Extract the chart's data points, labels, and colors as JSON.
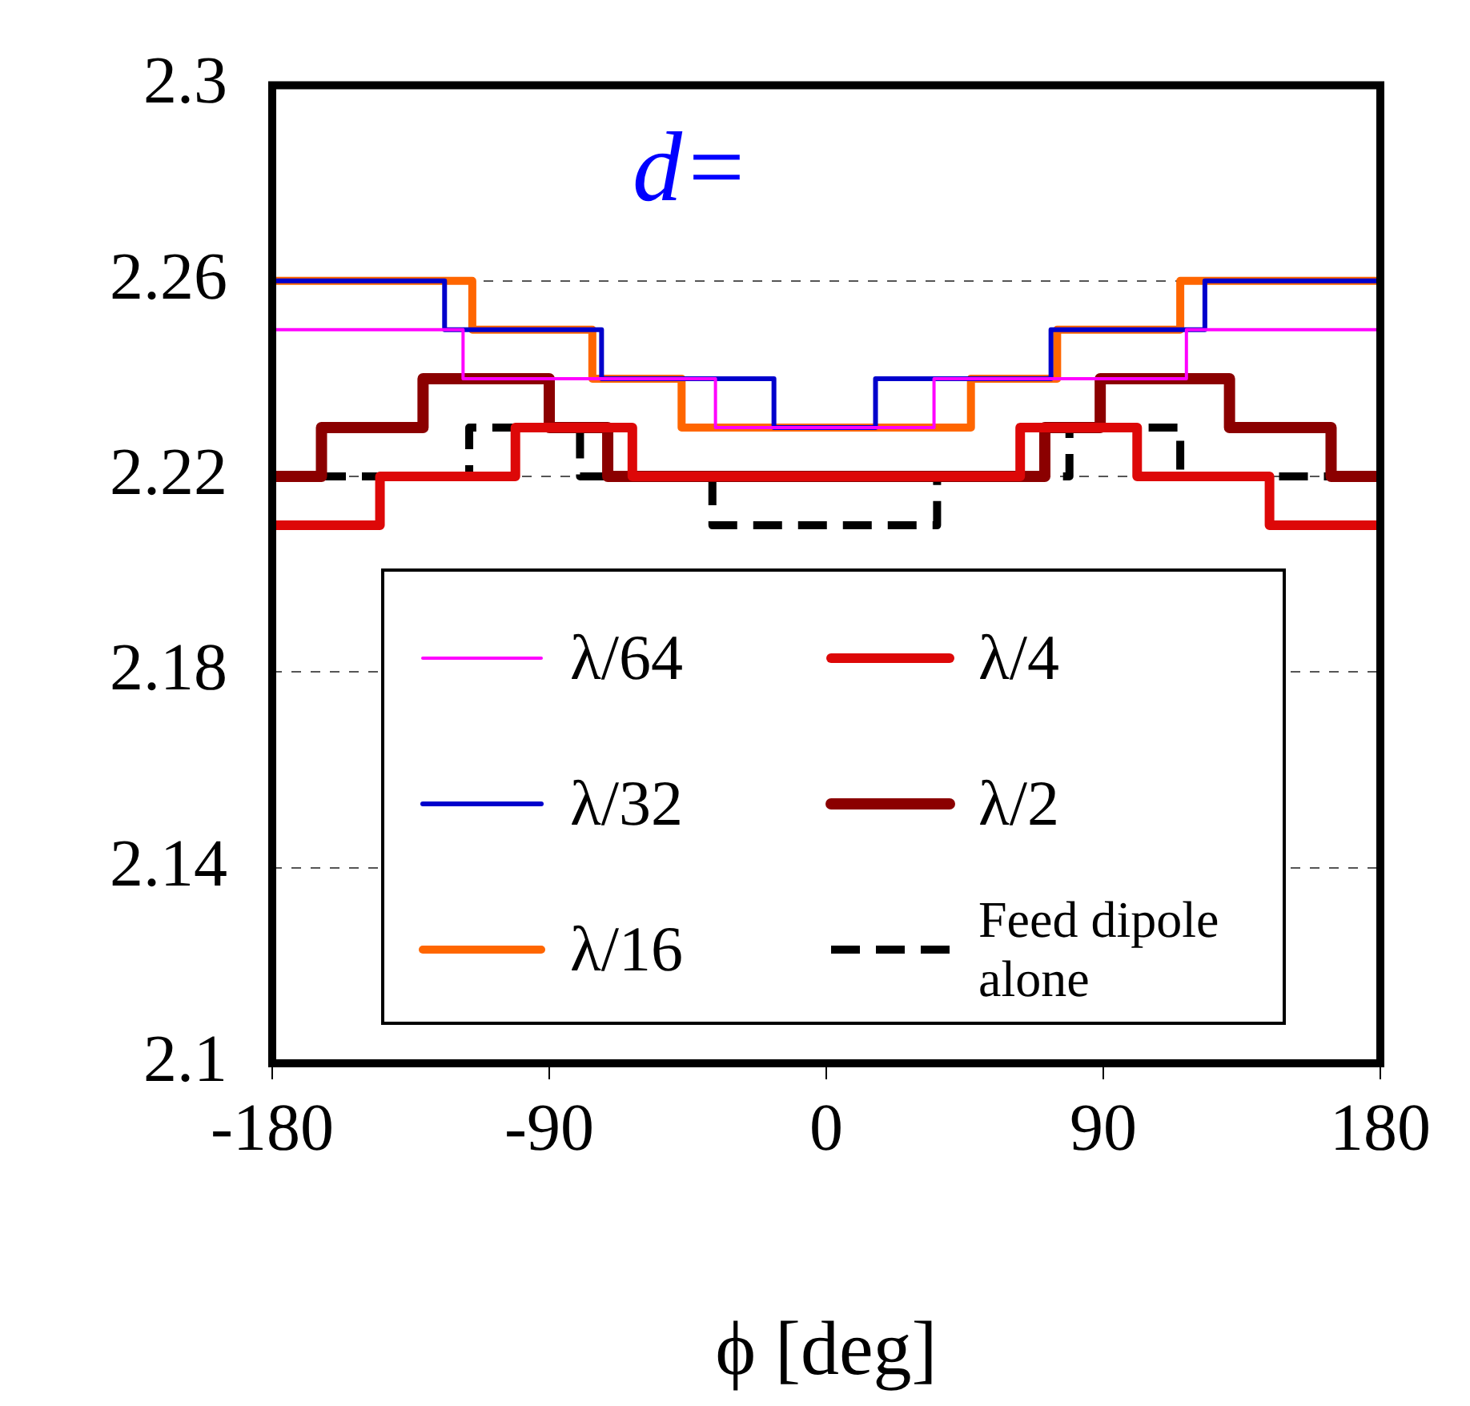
{
  "chart_data": {
    "type": "step",
    "xlabel": "ϕ [deg]",
    "annotations": [
      "d="
    ],
    "xlim": [
      -180,
      180
    ],
    "xticks": [
      -180,
      -90,
      0,
      90,
      180
    ],
    "ylim": [
      2.1,
      2.3
    ],
    "yticks": [
      2.1,
      2.14,
      2.18,
      2.22,
      2.26,
      2.3
    ],
    "grid": "y",
    "legend": "bottom",
    "series": [
      {
        "name": "λ/64",
        "color": "#ff00ff",
        "x": [
          -180,
          -118,
          -36,
          35,
          117,
          180
        ],
        "values": [
          2.25,
          2.24,
          2.23,
          2.24,
          2.25,
          2.25
        ]
      },
      {
        "name": "λ/32",
        "color": "#0000cc",
        "x": [
          -180,
          -124,
          -73,
          -17,
          16,
          73,
          123,
          180
        ],
        "values": [
          2.26,
          2.25,
          2.24,
          2.23,
          2.24,
          2.25,
          2.26,
          2.26
        ]
      },
      {
        "name": "λ/16",
        "color": "#ff6600",
        "x": [
          -180,
          -115,
          -76,
          -47,
          47,
          75,
          115,
          180
        ],
        "values": [
          2.26,
          2.25,
          2.24,
          2.23,
          2.24,
          2.25,
          2.26,
          2.26
        ]
      },
      {
        "name": "λ/4",
        "color": "#dd0808",
        "x": [
          -180,
          -145,
          -101,
          -63,
          63,
          101,
          144,
          180
        ],
        "values": [
          2.21,
          2.22,
          2.23,
          2.22,
          2.23,
          2.22,
          2.21,
          2.21
        ]
      },
      {
        "name": "λ/2",
        "color": "#8b0000",
        "x": [
          -180,
          -164,
          -131,
          -90,
          -71,
          71,
          89,
          131,
          164,
          180
        ],
        "values": [
          2.22,
          2.23,
          2.24,
          2.23,
          2.22,
          2.23,
          2.24,
          2.23,
          2.22,
          2.22
        ]
      },
      {
        "name": "Feed dipole alone",
        "color": "#000000",
        "line_style": "dashed",
        "x": [
          -180,
          -116,
          -80,
          -37,
          36,
          79,
          115,
          180
        ],
        "values": [
          2.22,
          2.23,
          2.22,
          2.21,
          2.22,
          2.23,
          2.22,
          2.22
        ]
      }
    ]
  }
}
